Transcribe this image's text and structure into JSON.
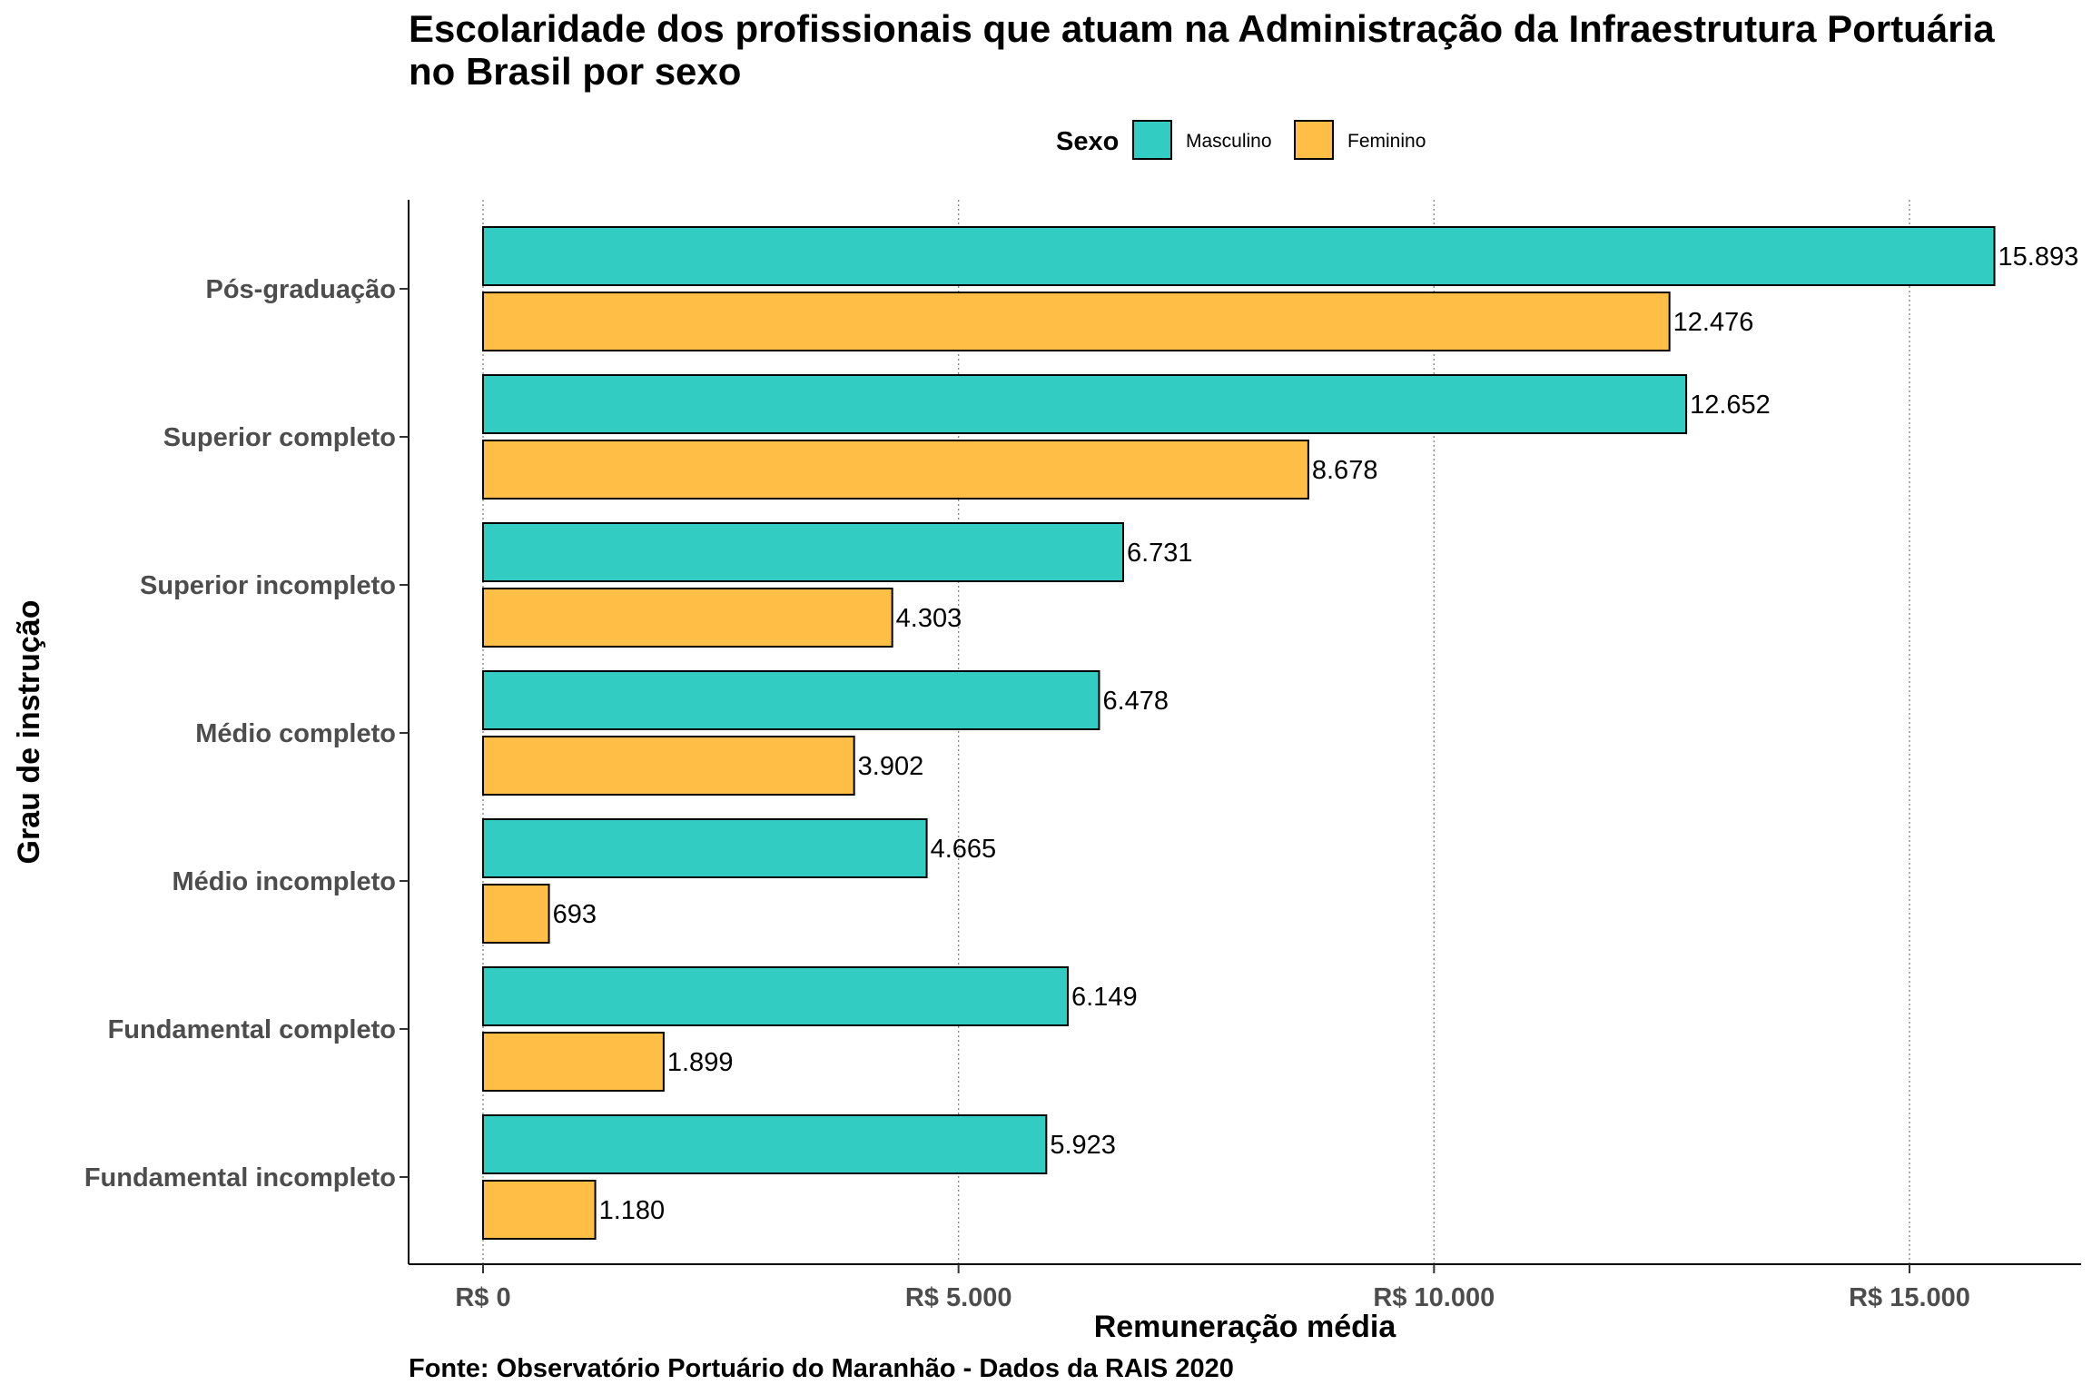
{
  "chart_data": {
    "type": "bar",
    "orientation": "horizontal",
    "title": "Escolaridade dos profissionais que atuam na Administração da Infraestrutura Portuária no Brasil por sexo",
    "title_lines": [
      "Escolaridade dos profissionais que atuam na Administração da Infraestrutura Portuária",
      "no Brasil por sexo"
    ],
    "xlabel": "Remuneração média",
    "ylabel": "Grau de instrução",
    "caption": "Fonte: Observatório Portuário do Maranhão - Dados da RAIS 2020",
    "xlim": [
      0,
      16500
    ],
    "x_ticks": [
      {
        "value": 0,
        "label": "R$ 0"
      },
      {
        "value": 5000,
        "label": "R$ 5.000"
      },
      {
        "value": 10000,
        "label": "R$ 10.000"
      },
      {
        "value": 15000,
        "label": "R$ 15.000"
      }
    ],
    "grid": "vertical dotted",
    "legend": {
      "title": "Sexo",
      "placement": "top",
      "entries": [
        {
          "name": "Masculino",
          "color": "#33CCC2"
        },
        {
          "name": "Feminino",
          "color": "#FFBE45"
        }
      ]
    },
    "categories": [
      "Pós-graduação",
      "Superior completo",
      "Superior incompleto",
      "Médio completo",
      "Médio incompleto",
      "Fundamental completo",
      "Fundamental incompleto"
    ],
    "series": [
      {
        "name": "Masculino",
        "color": "#33CCC2",
        "values": [
          15893,
          12652,
          6731,
          6478,
          4665,
          6149,
          5923
        ],
        "labels": [
          "15.893",
          "12.652",
          "6.731",
          "6.478",
          "4.665",
          "6.149",
          "5.923"
        ]
      },
      {
        "name": "Feminino",
        "color": "#FFBE45",
        "values": [
          12476,
          8678,
          4303,
          3902,
          693,
          1899,
          1180
        ],
        "labels": [
          "12.476",
          "8.678",
          "4.303",
          "3.902",
          "693",
          "1.899",
          "1.180"
        ]
      }
    ]
  }
}
